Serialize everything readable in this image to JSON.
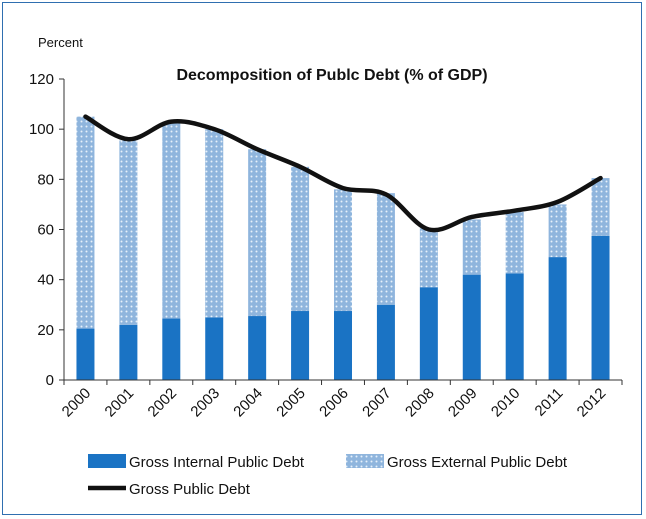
{
  "chart_data": {
    "type": "bar",
    "title": "Decomposition of Publc Debt (% of GDP)",
    "ylabel": "Percent",
    "xlabel": "",
    "ylim": [
      0,
      120
    ],
    "yticks": [
      0,
      20,
      40,
      60,
      80,
      100,
      120
    ],
    "stacked": true,
    "grid": false,
    "legend_position": "bottom",
    "categories": [
      "2000",
      "2001",
      "2002",
      "2003",
      "2004",
      "2005",
      "2006",
      "2007",
      "2008",
      "2009",
      "2010",
      "2011",
      "2012"
    ],
    "series": [
      {
        "name": "Gross Internal Public Debt",
        "kind": "bar",
        "color": "#1a73c4",
        "values": [
          20.5,
          22,
          24.5,
          25,
          25.5,
          27.5,
          27.5,
          30,
          37,
          42,
          42.5,
          49,
          57.5
        ]
      },
      {
        "name": "Gross External Public Debt",
        "kind": "bar",
        "color": "#8fb5dd",
        "values": [
          84.5,
          73.5,
          78.5,
          75,
          66.5,
          57.5,
          48.5,
          44.5,
          23.5,
          22,
          24.5,
          21,
          23
        ]
      },
      {
        "name": "Gross Public Debt",
        "kind": "line",
        "color": "#111111",
        "values": [
          105,
          96,
          103,
          100,
          92,
          85,
          76.5,
          74,
          60,
          65,
          67.5,
          71,
          80.5
        ]
      }
    ]
  }
}
